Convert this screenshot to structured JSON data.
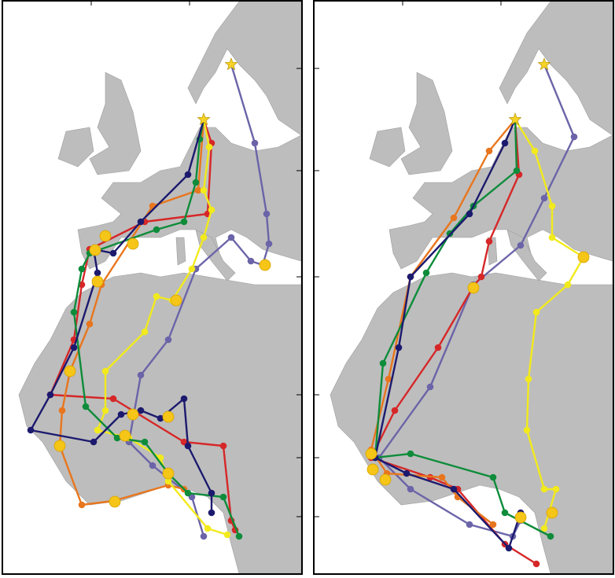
{
  "map": {
    "kind": "bird migration tracks over Europe and Africa",
    "land_color": "#bdbdbd",
    "sea_color": "#ffffff",
    "marker_star_color": "#f5d327",
    "stopover_marker_color": "#f5c518"
  },
  "panels": [
    {
      "id": "autumn",
      "tracks": [
        {
          "id": "red",
          "color": "#d62728"
        },
        {
          "id": "orange",
          "color": "#e8761e"
        },
        {
          "id": "yellow",
          "color": "#f2ea1c"
        },
        {
          "id": "green",
          "color": "#0e8c3a"
        },
        {
          "id": "navy",
          "color": "#1c1a6e"
        },
        {
          "id": "purple",
          "color": "#6b64a8"
        }
      ]
    },
    {
      "id": "spring",
      "tracks": [
        {
          "id": "red",
          "color": "#d62728"
        },
        {
          "id": "orange",
          "color": "#e8761e"
        },
        {
          "id": "yellow",
          "color": "#f2ea1c"
        },
        {
          "id": "green",
          "color": "#0e8c3a"
        },
        {
          "id": "navy",
          "color": "#1c1a6e"
        },
        {
          "id": "purple",
          "color": "#6b64a8"
        }
      ]
    }
  ]
}
